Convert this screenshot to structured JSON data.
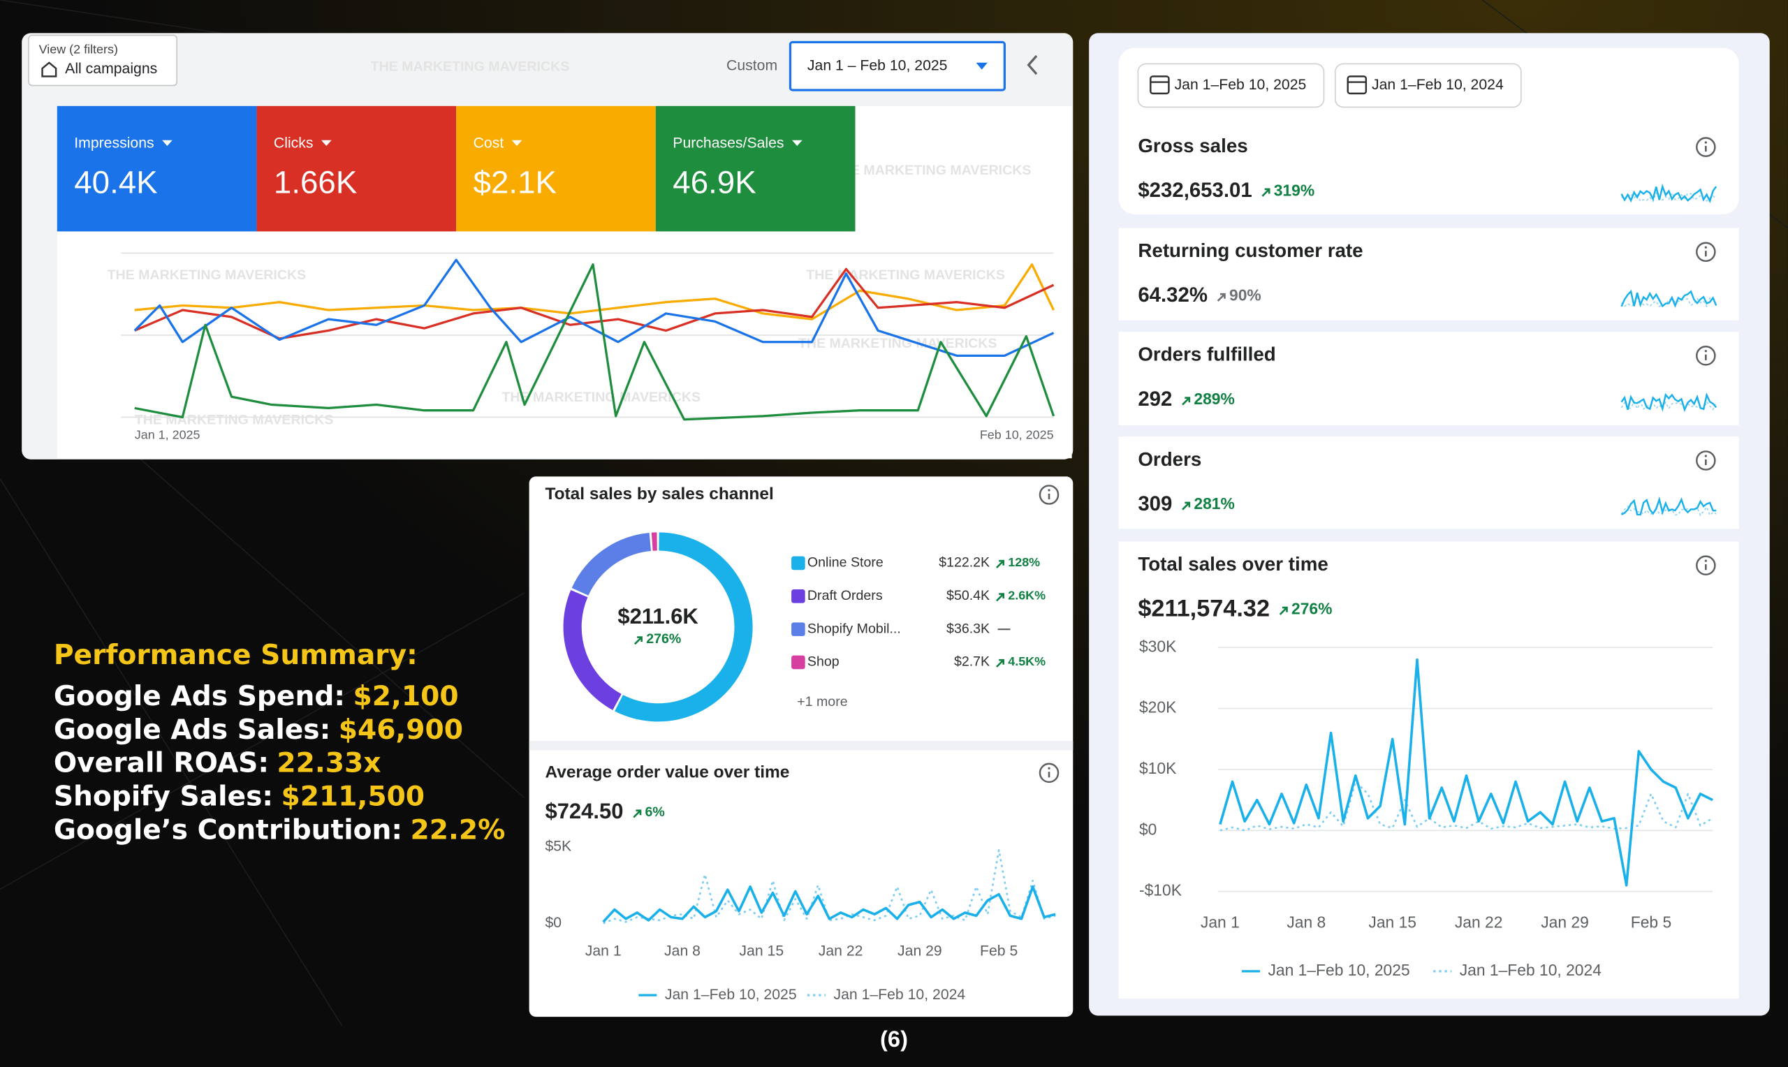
{
  "ads_panel": {
    "view_label": "View (2 filters)",
    "view_value": "All campaigns",
    "custom": "Custom",
    "date_range": "Jan 1 – Feb 10, 2025",
    "watermark": "THE MARKETING MAVERICKS",
    "metrics": [
      {
        "name": "Impressions",
        "value": "40.4K",
        "color": "#1a73e8"
      },
      {
        "name": "Clicks",
        "value": "1.66K",
        "color": "#d93025"
      },
      {
        "name": "Cost",
        "value": "$2.1K",
        "color": "#f9ab00"
      },
      {
        "name": "Purchases/Sales",
        "value": "46.9K",
        "color": "#1e8e3e"
      }
    ],
    "x_start": "Jan 1, 2025",
    "x_end": "Feb 10, 2025"
  },
  "summary": {
    "title": "Performance Summary:",
    "items": [
      {
        "label": "Google Ads Spend:",
        "value": "$2,100"
      },
      {
        "label": "Google Ads Sales:",
        "value": "$46,900"
      },
      {
        "label": "Overall ROAS:",
        "value": "22.33x"
      },
      {
        "label": "Shopify Sales:",
        "value": "$211,500"
      },
      {
        "label": "Google’s Contribution:",
        "value": "22.2%"
      }
    ]
  },
  "date_chips": [
    "Jan 1–Feb 10, 2025",
    "Jan 1–Feb 10, 2024"
  ],
  "kpis": [
    {
      "title": "Gross sales",
      "value": "$232,653.01",
      "change": "319%",
      "change_color": "#108043"
    },
    {
      "title": "Returning customer rate",
      "value": "64.32%",
      "change": "90%",
      "change_color": "#6d7175"
    },
    {
      "title": "Orders fulfilled",
      "value": "292",
      "change": "289%",
      "change_color": "#108043"
    },
    {
      "title": "Orders",
      "value": "309",
      "change": "281%",
      "change_color": "#108043"
    }
  ],
  "footer": "(6)",
  "chart_data": [
    {
      "type": "donut",
      "title": "Total sales by sales channel",
      "total_label": "$211.6K",
      "total_change": "276%",
      "categories": [
        "Online Store",
        "Draft Orders",
        "Shopify Mobil...",
        "Shop"
      ],
      "values": [
        122.2,
        50.4,
        36.3,
        2.7
      ],
      "value_labels": [
        "$122.2K",
        "$50.4K",
        "$36.3K",
        "$2.7K"
      ],
      "changes": [
        "128%",
        "2.6K%",
        null,
        "4.5K%"
      ],
      "colors": [
        "#1ab0ea",
        "#6c3fe0",
        "#5b7fe6",
        "#d63fa0"
      ],
      "more": "+1 more"
    },
    {
      "type": "line",
      "title": "Average order value over time",
      "headline": "$724.50",
      "change": "6%",
      "grid": false,
      "categories": [
        "Jan 1",
        null,
        null,
        null,
        null,
        null,
        null,
        "Jan 8",
        null,
        null,
        null,
        null,
        null,
        null,
        "Jan 15",
        null,
        null,
        null,
        null,
        null,
        null,
        "Jan 22",
        null,
        null,
        null,
        null,
        null,
        null,
        "Jan 29",
        null,
        null,
        null,
        null,
        null,
        null,
        "Feb 5",
        null,
        null,
        null,
        null,
        null
      ],
      "ylim": [
        0,
        5000
      ],
      "yticks": [
        {
          "value": 0,
          "label": "$0"
        },
        {
          "value": 5000,
          "label": "$5K"
        }
      ],
      "series": [
        {
          "name": "Jan 1–Feb 10, 2025",
          "color": "#1ab0ea",
          "style": "solid",
          "values": [
            100,
            900,
            300,
            700,
            200,
            900,
            400,
            300,
            1100,
            400,
            800,
            2200,
            800,
            2400,
            700,
            2000,
            500,
            2100,
            600,
            1800,
            300,
            700,
            400,
            900,
            600,
            1000,
            300,
            1200,
            1400,
            400,
            900,
            300,
            700,
            500,
            1500,
            1900,
            500,
            300,
            2400,
            400,
            600
          ]
        },
        {
          "name": "Jan 1–Feb 10, 2024",
          "color": "#7fcdf0",
          "style": "dotted",
          "values": [
            0,
            300,
            100,
            400,
            300,
            200,
            500,
            600,
            300,
            3200,
            400,
            1500,
            600,
            900,
            300,
            2800,
            200,
            1600,
            300,
            2500,
            200,
            300,
            600,
            400,
            200,
            500,
            2400,
            300,
            500,
            2200,
            300,
            500,
            200,
            2400,
            600,
            4800,
            800,
            400,
            2800,
            300,
            500
          ]
        }
      ]
    },
    {
      "type": "line",
      "title": "Total sales over time",
      "headline": "$211,574.32",
      "change": "276%",
      "grid": true,
      "categories": [
        "Jan 1",
        null,
        null,
        null,
        null,
        null,
        null,
        "Jan 8",
        null,
        null,
        null,
        null,
        null,
        null,
        "Jan 15",
        null,
        null,
        null,
        null,
        null,
        null,
        "Jan 22",
        null,
        null,
        null,
        null,
        null,
        null,
        "Jan 29",
        null,
        null,
        null,
        null,
        null,
        null,
        "Feb 5",
        null,
        null,
        null,
        null,
        null
      ],
      "ylim": [
        -10000,
        30000
      ],
      "yticks": [
        {
          "value": -10000,
          "label": "-$10K"
        },
        {
          "value": 0,
          "label": "$0"
        },
        {
          "value": 10000,
          "label": "$10K"
        },
        {
          "value": 20000,
          "label": "$20K"
        },
        {
          "value": 30000,
          "label": "$30K"
        }
      ],
      "series": [
        {
          "name": "Jan 1–Feb 10, 2025",
          "color": "#1ab0ea",
          "style": "solid",
          "values": [
            1000,
            8000,
            1500,
            5000,
            1000,
            6000,
            1200,
            7500,
            2000,
            16000,
            1500,
            9000,
            2000,
            4000,
            15000,
            1000,
            28000,
            2000,
            7000,
            1500,
            9000,
            1500,
            6000,
            1200,
            8000,
            1500,
            3000,
            1000,
            8000,
            1500,
            7000,
            1500,
            2000,
            -9000,
            13000,
            10000,
            8000,
            7000,
            2000,
            6000,
            5000
          ]
        },
        {
          "name": "Jan 1–Feb 10, 2024",
          "color": "#7fcdf0",
          "style": "dotted",
          "values": [
            0,
            500,
            0,
            800,
            200,
            600,
            300,
            1000,
            500,
            3000,
            700,
            8000,
            6000,
            1000,
            400,
            5000,
            600,
            2000,
            500,
            800,
            400,
            1500,
            300,
            700,
            500,
            1200,
            400,
            600,
            800,
            1000,
            500,
            700,
            300,
            400,
            800,
            6000,
            1500,
            500,
            6000,
            800,
            2000
          ]
        }
      ]
    }
  ]
}
